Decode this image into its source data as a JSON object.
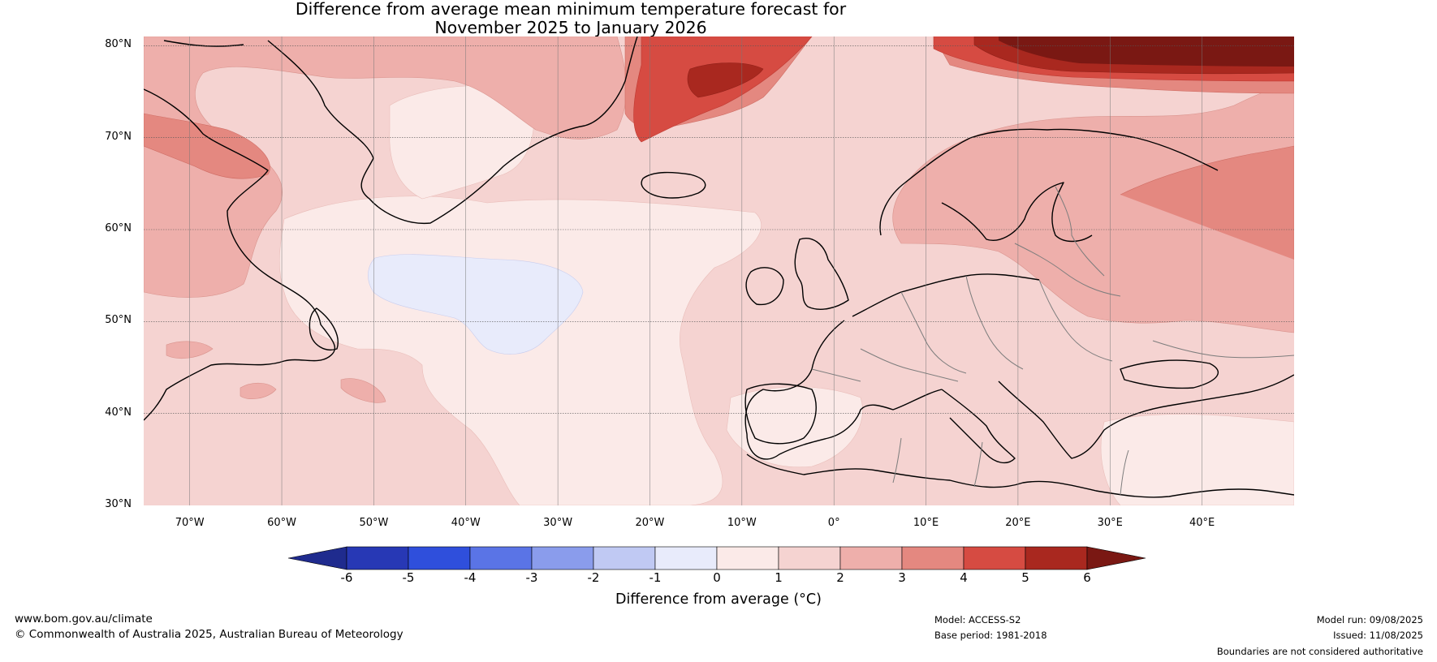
{
  "title": {
    "line1": "Difference from average mean minimum temperature forecast for",
    "line2": "November 2025 to January 2026"
  },
  "map": {
    "lat_labels": [
      "80°N",
      "70°N",
      "60°N",
      "50°N",
      "40°N",
      "30°N"
    ],
    "lon_labels": [
      "70°W",
      "60°W",
      "50°W",
      "40°W",
      "30°W",
      "20°W",
      "10°W",
      "0°",
      "10°E",
      "20°E",
      "30°E",
      "40°E"
    ],
    "region": "North Atlantic and Europe",
    "lon_range": [
      -75,
      50
    ],
    "lat_range": [
      30,
      81
    ]
  },
  "colorbar": {
    "label": "Difference from average (°C)",
    "ticks": [
      "-6",
      "-5",
      "-4",
      "-3",
      "-2",
      "-1",
      "0",
      "1",
      "2",
      "3",
      "4",
      "5",
      "6"
    ],
    "colors": [
      "#1f2b8e",
      "#2738b5",
      "#2f4fdc",
      "#5a74e6",
      "#8a9cec",
      "#c0c9f3",
      "#e8ebfb",
      "#fbeae8",
      "#f5d3d1",
      "#eeafab",
      "#e48880",
      "#d64b42",
      "#a9281f",
      "#7a1813"
    ]
  },
  "footer": {
    "website": "www.bom.gov.au/climate",
    "copyright": "© Commonwealth of Australia 2025, Australian Bureau of Meteorology",
    "model": "Model: ACCESS-S2",
    "base_period": "Base period: 1981-2018",
    "model_run": "Model run: 09/08/2025",
    "issued": "Issued: 11/08/2025",
    "disclaimer": "Boundaries are not considered authoritative"
  }
}
